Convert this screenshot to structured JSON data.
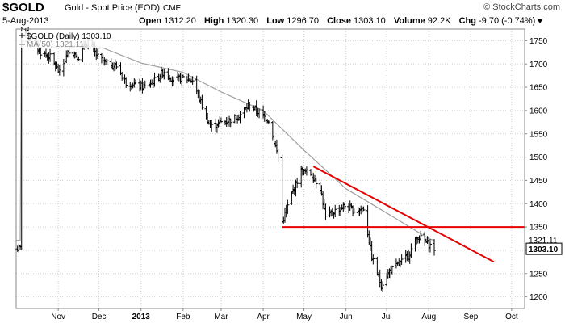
{
  "header": {
    "ticker": "$GOLD",
    "name": "Gold - Spot Price (EOD)",
    "exchange": "CME",
    "date": "5-Aug-2013",
    "open_label": "Open",
    "open": "1312.20",
    "high_label": "High",
    "high": "1320.30",
    "low_label": "Low",
    "low": "1296.70",
    "close_label": "Close",
    "close": "1303.10",
    "volume_label": "Volume",
    "volume": "92.2K",
    "chg_label": "Chg",
    "chg": "-9.70 (-0.74%)",
    "brand": "© StockCharts.com"
  },
  "legend": {
    "price": "$GOLD (Daily) 1303.10",
    "ma": "MA(50) 1321.11"
  },
  "colors": {
    "price": "#000000",
    "ma": "#a0a0a0",
    "trendline": "#e60000",
    "grid": "#d0d0d0"
  },
  "chart_data": {
    "type": "ohlc",
    "ylim": [
      1175,
      1775
    ],
    "y_ticks": [
      1200,
      1250,
      1300,
      1350,
      1400,
      1450,
      1500,
      1550,
      1600,
      1650,
      1700,
      1750
    ],
    "x_ticks": [
      {
        "label": "Nov",
        "date": "2012-11-01",
        "bold": false
      },
      {
        "label": "Dec",
        "date": "2012-12-01",
        "bold": false
      },
      {
        "label": "2013",
        "date": "2013-01-01",
        "bold": true
      },
      {
        "label": "Feb",
        "date": "2013-02-01",
        "bold": false
      },
      {
        "label": "Mar",
        "date": "2013-03-01",
        "bold": false
      },
      {
        "label": "Apr",
        "date": "2013-04-01",
        "bold": false
      },
      {
        "label": "May",
        "date": "2013-05-01",
        "bold": false
      },
      {
        "label": "Jun",
        "date": "2013-06-01",
        "bold": false
      },
      {
        "label": "Jul",
        "date": "2013-07-01",
        "bold": false
      },
      {
        "label": "Aug",
        "date": "2013-08-01",
        "bold": false
      },
      {
        "label": "Sep",
        "date": "2013-09-01",
        "bold": false
      },
      {
        "label": "Oct",
        "date": "2013-10-01",
        "bold": false
      }
    ],
    "price_anchors": [
      [
        "2012-10-05",
        1780
      ],
      [
        "2012-10-12",
        1755
      ],
      [
        "2012-10-19",
        1725
      ],
      [
        "2012-10-26",
        1715
      ],
      [
        "2012-11-02",
        1680
      ],
      [
        "2012-11-09",
        1730
      ],
      [
        "2012-11-16",
        1715
      ],
      [
        "2012-11-23",
        1750
      ],
      [
        "2012-11-30",
        1715
      ],
      [
        "2012-12-07",
        1700
      ],
      [
        "2012-12-14",
        1695
      ],
      [
        "2012-12-21",
        1660
      ],
      [
        "2012-12-28",
        1655
      ],
      [
        "2013-01-04",
        1650
      ],
      [
        "2013-01-11",
        1665
      ],
      [
        "2013-01-18",
        1685
      ],
      [
        "2013-01-25",
        1665
      ],
      [
        "2013-02-01",
        1670
      ],
      [
        "2013-02-08",
        1665
      ],
      [
        "2013-02-15",
        1610
      ],
      [
        "2013-02-21",
        1565
      ],
      [
        "2013-03-01",
        1575
      ],
      [
        "2013-03-08",
        1580
      ],
      [
        "2013-03-15",
        1592
      ],
      [
        "2013-03-22",
        1612
      ],
      [
        "2013-03-29",
        1595
      ],
      [
        "2013-04-05",
        1580
      ],
      [
        "2013-04-12",
        1500
      ],
      [
        "2013-04-15",
        1360
      ],
      [
        "2013-04-22",
        1420
      ],
      [
        "2013-04-29",
        1470
      ],
      [
        "2013-05-06",
        1465
      ],
      [
        "2013-05-13",
        1435
      ],
      [
        "2013-05-17",
        1370
      ],
      [
        "2013-05-24",
        1385
      ],
      [
        "2013-05-31",
        1395
      ],
      [
        "2013-06-07",
        1385
      ],
      [
        "2013-06-14",
        1390
      ],
      [
        "2013-06-20",
        1285
      ],
      [
        "2013-06-27",
        1225
      ],
      [
        "2013-07-03",
        1255
      ],
      [
        "2013-07-10",
        1270
      ],
      [
        "2013-07-17",
        1290
      ],
      [
        "2013-07-24",
        1330
      ],
      [
        "2013-07-31",
        1315
      ],
      [
        "2013-08-05",
        1303.1
      ]
    ],
    "ma50_anchors": [
      [
        "2012-10-05",
        1750
      ],
      [
        "2012-11-01",
        1735
      ],
      [
        "2012-12-01",
        1738
      ],
      [
        "2013-01-01",
        1702
      ],
      [
        "2013-02-01",
        1682
      ],
      [
        "2013-03-01",
        1640
      ],
      [
        "2013-04-01",
        1600
      ],
      [
        "2013-05-01",
        1515
      ],
      [
        "2013-06-01",
        1432
      ],
      [
        "2013-07-01",
        1380
      ],
      [
        "2013-08-01",
        1325
      ],
      [
        "2013-08-05",
        1321.11
      ]
    ],
    "last_close": 1303.1,
    "ma50_last": 1321.11,
    "last_close_label": "1303.10",
    "ma50_last_label": "1321.11",
    "annotations": {
      "support_line": {
        "from": [
          "2013-04-15",
          1350
        ],
        "to": [
          "2013-10-15",
          1350
        ]
      },
      "down_trendline": {
        "from": [
          "2013-05-08",
          1480
        ],
        "to": [
          "2013-09-18",
          1275
        ]
      }
    },
    "start_date": "2012-10-01",
    "end_date": "2013-08-05"
  }
}
